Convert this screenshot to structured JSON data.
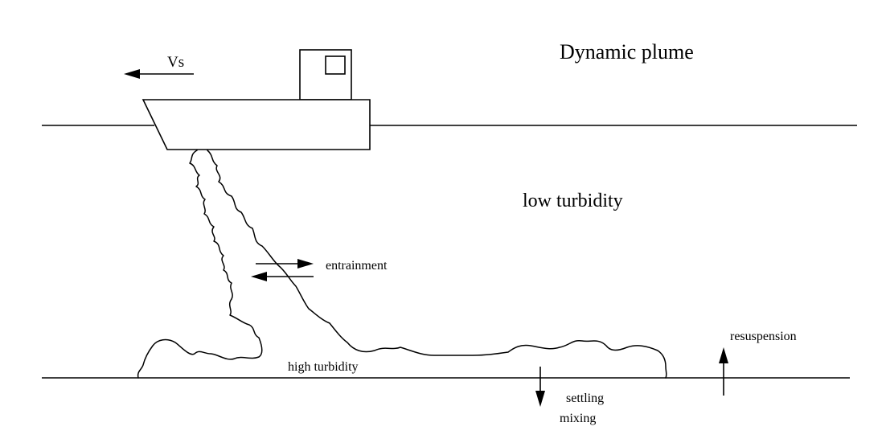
{
  "labels": {
    "title": "Dynamic plume",
    "vessel_speed": "Vs",
    "low_turbidity": "low turbidity",
    "entrainment": "entrainment",
    "high_turbidity": "high turbidity",
    "resuspension": "resuspension",
    "settling": "settling",
    "mixing": "mixing"
  },
  "colors": {
    "line": "#000000",
    "background": "#ffffff"
  }
}
